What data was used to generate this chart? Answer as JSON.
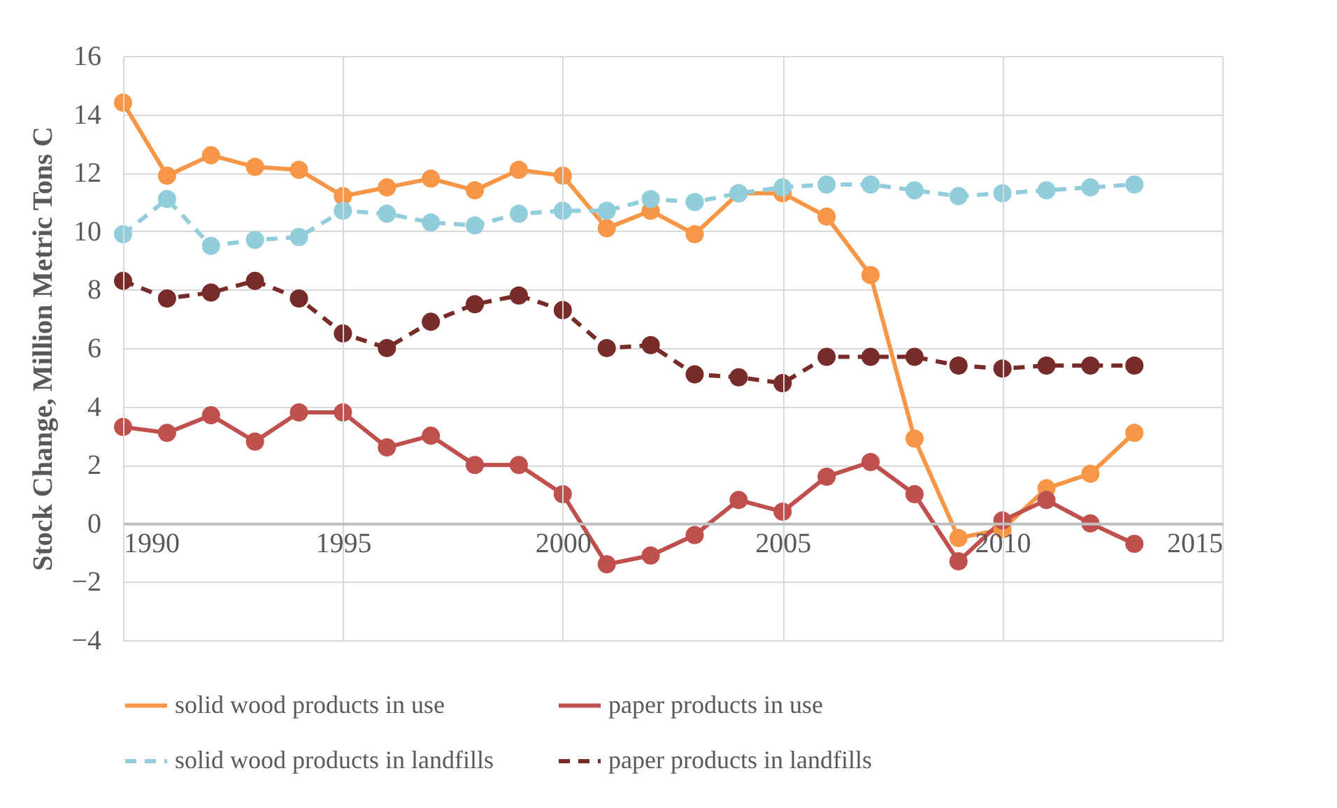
{
  "chart_data": {
    "type": "line",
    "ylabel": "Stock Change, Million Metric Tons C",
    "x": [
      1990,
      1991,
      1992,
      1993,
      1994,
      1995,
      1996,
      1997,
      1998,
      1999,
      2000,
      2001,
      2002,
      2003,
      2004,
      2005,
      2006,
      2007,
      2008,
      2009,
      2010,
      2011,
      2012,
      2013
    ],
    "xlim": [
      1990,
      2015
    ],
    "xticks": [
      1990,
      1995,
      2000,
      2005,
      2010,
      2015
    ],
    "ylim": [
      -4,
      16
    ],
    "yticks": [
      -4,
      -2,
      0,
      2,
      4,
      6,
      8,
      10,
      12,
      14,
      16
    ],
    "grid": true,
    "legend": "bottom",
    "marker": "circle",
    "series": [
      {
        "name": "solid wood products in use",
        "color": "#f79646",
        "line_style": "solid",
        "values": [
          14.4,
          11.9,
          12.6,
          12.2,
          12.1,
          11.2,
          11.5,
          11.8,
          11.4,
          12.1,
          11.9,
          10.1,
          10.7,
          9.9,
          11.3,
          11.3,
          10.5,
          8.5,
          2.9,
          -0.5,
          -0.2,
          1.2,
          1.7,
          3.1
        ]
      },
      {
        "name": "paper products in use",
        "color": "#c0504d",
        "line_style": "solid",
        "values": [
          3.3,
          3.1,
          3.7,
          2.8,
          3.8,
          3.8,
          2.6,
          3.0,
          2.0,
          2.0,
          1.0,
          -1.4,
          -1.1,
          -0.4,
          0.8,
          0.4,
          1.6,
          2.1,
          1.0,
          -1.3,
          0.1,
          0.8,
          0.0,
          -0.7
        ]
      },
      {
        "name": "solid wood products in landfills",
        "color": "#92cddc",
        "line_style": "dashed",
        "values": [
          9.9,
          11.1,
          9.5,
          9.7,
          9.8,
          10.7,
          10.6,
          10.3,
          10.2,
          10.6,
          10.7,
          10.7,
          11.1,
          11.0,
          11.3,
          11.5,
          11.6,
          11.6,
          11.4,
          11.2,
          11.3,
          11.4,
          11.5,
          11.6
        ]
      },
      {
        "name": "paper products in landfills",
        "color": "#772c2a",
        "line_style": "dashed",
        "values": [
          8.3,
          7.7,
          7.9,
          8.3,
          7.7,
          6.5,
          6.0,
          6.9,
          7.5,
          7.8,
          7.3,
          6.0,
          6.1,
          5.1,
          5.0,
          4.8,
          5.7,
          5.7,
          5.7,
          5.4,
          5.3,
          5.4,
          5.4,
          5.4
        ]
      }
    ]
  }
}
